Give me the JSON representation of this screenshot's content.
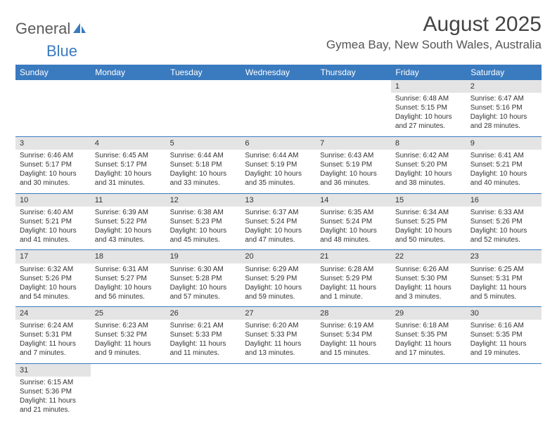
{
  "logo": {
    "textA": "General",
    "textB": "Blue"
  },
  "title": "August 2025",
  "location": "Gymea Bay, New South Wales, Australia",
  "colors": {
    "header_bg": "#3a7abf",
    "header_text": "#ffffff",
    "daynum_bg": "#e4e4e4",
    "border": "#3a7abf",
    "body_text": "#333333"
  },
  "weekdays": [
    "Sunday",
    "Monday",
    "Tuesday",
    "Wednesday",
    "Thursday",
    "Friday",
    "Saturday"
  ],
  "weeks": [
    {
      "nums": [
        "",
        "",
        "",
        "",
        "",
        "1",
        "2"
      ],
      "cells": [
        null,
        null,
        null,
        null,
        null,
        {
          "sr": "6:48 AM",
          "ss": "5:15 PM",
          "d": "10 hours and 27 minutes."
        },
        {
          "sr": "6:47 AM",
          "ss": "5:16 PM",
          "d": "10 hours and 28 minutes."
        }
      ]
    },
    {
      "nums": [
        "3",
        "4",
        "5",
        "6",
        "7",
        "8",
        "9"
      ],
      "cells": [
        {
          "sr": "6:46 AM",
          "ss": "5:17 PM",
          "d": "10 hours and 30 minutes."
        },
        {
          "sr": "6:45 AM",
          "ss": "5:17 PM",
          "d": "10 hours and 31 minutes."
        },
        {
          "sr": "6:44 AM",
          "ss": "5:18 PM",
          "d": "10 hours and 33 minutes."
        },
        {
          "sr": "6:44 AM",
          "ss": "5:19 PM",
          "d": "10 hours and 35 minutes."
        },
        {
          "sr": "6:43 AM",
          "ss": "5:19 PM",
          "d": "10 hours and 36 minutes."
        },
        {
          "sr": "6:42 AM",
          "ss": "5:20 PM",
          "d": "10 hours and 38 minutes."
        },
        {
          "sr": "6:41 AM",
          "ss": "5:21 PM",
          "d": "10 hours and 40 minutes."
        }
      ]
    },
    {
      "nums": [
        "10",
        "11",
        "12",
        "13",
        "14",
        "15",
        "16"
      ],
      "cells": [
        {
          "sr": "6:40 AM",
          "ss": "5:21 PM",
          "d": "10 hours and 41 minutes."
        },
        {
          "sr": "6:39 AM",
          "ss": "5:22 PM",
          "d": "10 hours and 43 minutes."
        },
        {
          "sr": "6:38 AM",
          "ss": "5:23 PM",
          "d": "10 hours and 45 minutes."
        },
        {
          "sr": "6:37 AM",
          "ss": "5:24 PM",
          "d": "10 hours and 47 minutes."
        },
        {
          "sr": "6:35 AM",
          "ss": "5:24 PM",
          "d": "10 hours and 48 minutes."
        },
        {
          "sr": "6:34 AM",
          "ss": "5:25 PM",
          "d": "10 hours and 50 minutes."
        },
        {
          "sr": "6:33 AM",
          "ss": "5:26 PM",
          "d": "10 hours and 52 minutes."
        }
      ]
    },
    {
      "nums": [
        "17",
        "18",
        "19",
        "20",
        "21",
        "22",
        "23"
      ],
      "cells": [
        {
          "sr": "6:32 AM",
          "ss": "5:26 PM",
          "d": "10 hours and 54 minutes."
        },
        {
          "sr": "6:31 AM",
          "ss": "5:27 PM",
          "d": "10 hours and 56 minutes."
        },
        {
          "sr": "6:30 AM",
          "ss": "5:28 PM",
          "d": "10 hours and 57 minutes."
        },
        {
          "sr": "6:29 AM",
          "ss": "5:29 PM",
          "d": "10 hours and 59 minutes."
        },
        {
          "sr": "6:28 AM",
          "ss": "5:29 PM",
          "d": "11 hours and 1 minute."
        },
        {
          "sr": "6:26 AM",
          "ss": "5:30 PM",
          "d": "11 hours and 3 minutes."
        },
        {
          "sr": "6:25 AM",
          "ss": "5:31 PM",
          "d": "11 hours and 5 minutes."
        }
      ]
    },
    {
      "nums": [
        "24",
        "25",
        "26",
        "27",
        "28",
        "29",
        "30"
      ],
      "cells": [
        {
          "sr": "6:24 AM",
          "ss": "5:31 PM",
          "d": "11 hours and 7 minutes."
        },
        {
          "sr": "6:23 AM",
          "ss": "5:32 PM",
          "d": "11 hours and 9 minutes."
        },
        {
          "sr": "6:21 AM",
          "ss": "5:33 PM",
          "d": "11 hours and 11 minutes."
        },
        {
          "sr": "6:20 AM",
          "ss": "5:33 PM",
          "d": "11 hours and 13 minutes."
        },
        {
          "sr": "6:19 AM",
          "ss": "5:34 PM",
          "d": "11 hours and 15 minutes."
        },
        {
          "sr": "6:18 AM",
          "ss": "5:35 PM",
          "d": "11 hours and 17 minutes."
        },
        {
          "sr": "6:16 AM",
          "ss": "5:35 PM",
          "d": "11 hours and 19 minutes."
        }
      ]
    },
    {
      "nums": [
        "31",
        "",
        "",
        "",
        "",
        "",
        ""
      ],
      "cells": [
        {
          "sr": "6:15 AM",
          "ss": "5:36 PM",
          "d": "11 hours and 21 minutes."
        },
        null,
        null,
        null,
        null,
        null,
        null
      ]
    }
  ],
  "labels": {
    "sunrise": "Sunrise: ",
    "sunset": "Sunset: ",
    "daylight": "Daylight: "
  }
}
